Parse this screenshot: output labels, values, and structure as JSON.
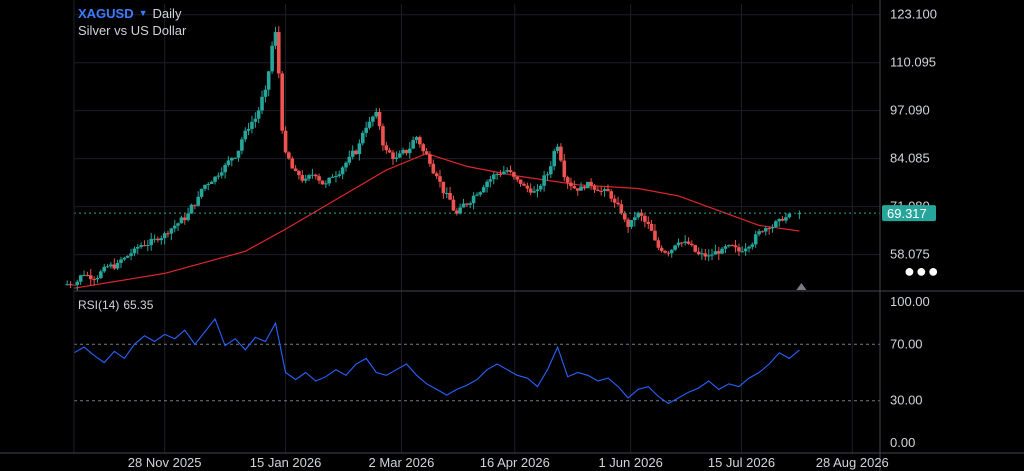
{
  "header": {
    "symbol": "XAGUSD",
    "interval": "Daily",
    "description": "Silver vs US Dollar"
  },
  "rsi": {
    "label": "RSI(14)",
    "value": "65.35"
  },
  "colors": {
    "up": "#26a69a",
    "down": "#ef5350",
    "ma": "#e0262b",
    "rsi": "#2962ff",
    "last_price": "#26a69a",
    "price_line": "#26a69a"
  },
  "chart_data": [
    {
      "type": "candlestick",
      "title": "XAGUSD Daily",
      "x_axis": {
        "type": "date",
        "range": [
          "2025-10-23",
          "2026-09-08"
        ],
        "tick_labels": [
          {
            "date": "2025-11-28",
            "label": "28 Nov 2025"
          },
          {
            "date": "2026-01-15",
            "label": "15 Jan 2026"
          },
          {
            "date": "2026-03-02",
            "label": "2 Mar 2026"
          },
          {
            "date": "2026-04-16",
            "label": "16 Apr 2026"
          },
          {
            "date": "2026-06-01",
            "label": "1 Jun 2026"
          },
          {
            "date": "2026-07-15",
            "label": "15 Jul 2026"
          },
          {
            "date": "2026-08-28",
            "label": "28 Aug 2026"
          }
        ]
      },
      "y_axis": {
        "range": [
          48.5,
          126
        ],
        "tick_labels": [
          "123.100",
          "110.095",
          "97.090",
          "84.085",
          "71.080",
          "58.075"
        ],
        "tick_values": [
          123.1,
          110.095,
          97.09,
          84.085,
          71.08,
          58.075
        ]
      },
      "last_price": {
        "value": 69.317,
        "label": "69.317"
      },
      "grid": true,
      "candles": [
        {
          "x": "2025-10-23",
          "v": 50.5
        },
        {
          "x": "2025-10-27",
          "v": 53.0
        },
        {
          "x": "2025-10-31",
          "v": 52.0
        },
        {
          "x": "2025-11-04",
          "v": 54.0
        },
        {
          "x": "2025-11-08",
          "v": 55.0
        },
        {
          "x": "2025-11-12",
          "v": 57.0
        },
        {
          "x": "2025-11-16",
          "v": 59.0
        },
        {
          "x": "2025-11-20",
          "v": 61.0
        },
        {
          "x": "2025-11-24",
          "v": 62.0
        },
        {
          "x": "2025-11-28",
          "v": 63.5
        },
        {
          "x": "2025-12-02",
          "v": 66.0
        },
        {
          "x": "2025-12-06",
          "v": 68.0
        },
        {
          "x": "2025-12-10",
          "v": 72.0
        },
        {
          "x": "2025-12-14",
          "v": 77.0
        },
        {
          "x": "2025-12-18",
          "v": 79.0
        },
        {
          "x": "2025-12-22",
          "v": 82.0
        },
        {
          "x": "2025-12-26",
          "v": 85.0
        },
        {
          "x": "2025-12-30",
          "v": 91.0
        },
        {
          "x": "2026-01-03",
          "v": 95.0
        },
        {
          "x": "2026-01-07",
          "v": 102.0
        },
        {
          "x": "2026-01-11",
          "v": 118.0
        },
        {
          "x": "2026-01-15",
          "v": 85.0
        },
        {
          "x": "2026-01-19",
          "v": 80.0
        },
        {
          "x": "2026-01-23",
          "v": 78.0
        },
        {
          "x": "2026-01-27",
          "v": 80.0
        },
        {
          "x": "2026-01-31",
          "v": 77.0
        },
        {
          "x": "2026-02-04",
          "v": 80.0
        },
        {
          "x": "2026-02-08",
          "v": 83.0
        },
        {
          "x": "2026-02-12",
          "v": 86.0
        },
        {
          "x": "2026-02-16",
          "v": 93.0
        },
        {
          "x": "2026-02-20",
          "v": 96.0
        },
        {
          "x": "2026-02-24",
          "v": 86.0
        },
        {
          "x": "2026-02-28",
          "v": 84.0
        },
        {
          "x": "2026-03-04",
          "v": 86.0
        },
        {
          "x": "2026-03-08",
          "v": 90.0
        },
        {
          "x": "2026-03-12",
          "v": 85.0
        },
        {
          "x": "2026-03-16",
          "v": 80.0
        },
        {
          "x": "2026-03-20",
          "v": 74.0
        },
        {
          "x": "2026-03-24",
          "v": 69.0
        },
        {
          "x": "2026-03-28",
          "v": 72.0
        },
        {
          "x": "2026-04-01",
          "v": 75.0
        },
        {
          "x": "2026-04-05",
          "v": 78.0
        },
        {
          "x": "2026-04-09",
          "v": 80.0
        },
        {
          "x": "2026-04-13",
          "v": 81.0
        },
        {
          "x": "2026-04-17",
          "v": 78.0
        },
        {
          "x": "2026-04-21",
          "v": 76.0
        },
        {
          "x": "2026-04-25",
          "v": 75.0
        },
        {
          "x": "2026-04-29",
          "v": 80.0
        },
        {
          "x": "2026-05-03",
          "v": 88.0
        },
        {
          "x": "2026-05-07",
          "v": 78.0
        },
        {
          "x": "2026-05-11",
          "v": 76.0
        },
        {
          "x": "2026-05-15",
          "v": 77.0
        },
        {
          "x": "2026-05-19",
          "v": 76.0
        },
        {
          "x": "2026-05-23",
          "v": 75.0
        },
        {
          "x": "2026-05-27",
          "v": 71.0
        },
        {
          "x": "2026-05-31",
          "v": 66.0
        },
        {
          "x": "2026-06-04",
          "v": 69.0
        },
        {
          "x": "2026-06-08",
          "v": 66.0
        },
        {
          "x": "2026-06-12",
          "v": 60.0
        },
        {
          "x": "2026-06-16",
          "v": 59.0
        },
        {
          "x": "2026-06-20",
          "v": 62.0
        },
        {
          "x": "2026-06-24",
          "v": 61.0
        },
        {
          "x": "2026-06-28",
          "v": 58.0
        },
        {
          "x": "2026-07-02",
          "v": 57.5
        },
        {
          "x": "2026-07-06",
          "v": 59.0
        },
        {
          "x": "2026-07-10",
          "v": 60.0
        },
        {
          "x": "2026-07-14",
          "v": 59.0
        },
        {
          "x": "2026-07-18",
          "v": 61.0
        },
        {
          "x": "2026-07-22",
          "v": 64.0
        },
        {
          "x": "2026-07-26",
          "v": 66.0
        },
        {
          "x": "2026-07-30",
          "v": 67.0
        },
        {
          "x": "2026-08-03",
          "v": 68.5
        },
        {
          "x": "2026-08-07",
          "v": 69.3
        }
      ],
      "moving_average": [
        {
          "x": "2025-10-23",
          "v": 49.0
        },
        {
          "x": "2025-11-28",
          "v": 53.0
        },
        {
          "x": "2025-12-30",
          "v": 59.0
        },
        {
          "x": "2026-01-15",
          "v": 65.0
        },
        {
          "x": "2026-02-04",
          "v": 73.0
        },
        {
          "x": "2026-02-24",
          "v": 81.0
        },
        {
          "x": "2026-03-12",
          "v": 85.5
        },
        {
          "x": "2026-03-28",
          "v": 82.0
        },
        {
          "x": "2026-04-16",
          "v": 79.5
        },
        {
          "x": "2026-05-11",
          "v": 77.0
        },
        {
          "x": "2026-06-04",
          "v": 76.0
        },
        {
          "x": "2026-06-20",
          "v": 74.0
        },
        {
          "x": "2026-07-06",
          "v": 70.0
        },
        {
          "x": "2026-07-22",
          "v": 66.0
        },
        {
          "x": "2026-08-07",
          "v": 64.5
        }
      ]
    },
    {
      "type": "line",
      "title": "RSI(14) 65.35",
      "x_axis": {
        "type": "date",
        "range": [
          "2025-10-23",
          "2026-09-08"
        ]
      },
      "y_axis": {
        "range": [
          0,
          100
        ],
        "tick_labels": [
          "100.00",
          "70.00",
          "30.00",
          "0.00"
        ],
        "tick_values": [
          100,
          70,
          30,
          0
        ]
      },
      "bands": [
        70,
        30
      ],
      "series": [
        {
          "name": "RSI(14)",
          "points": [
            {
              "x": "2025-10-23",
              "v": 64
            },
            {
              "x": "2025-10-27",
              "v": 68
            },
            {
              "x": "2025-10-31",
              "v": 62
            },
            {
              "x": "2025-11-04",
              "v": 57
            },
            {
              "x": "2025-11-08",
              "v": 65
            },
            {
              "x": "2025-11-12",
              "v": 60
            },
            {
              "x": "2025-11-16",
              "v": 70
            },
            {
              "x": "2025-11-20",
              "v": 76
            },
            {
              "x": "2025-11-24",
              "v": 72
            },
            {
              "x": "2025-11-28",
              "v": 77
            },
            {
              "x": "2025-12-02",
              "v": 74
            },
            {
              "x": "2025-12-06",
              "v": 80
            },
            {
              "x": "2025-12-10",
              "v": 70
            },
            {
              "x": "2025-12-14",
              "v": 79
            },
            {
              "x": "2025-12-18",
              "v": 88
            },
            {
              "x": "2025-12-22",
              "v": 69
            },
            {
              "x": "2025-12-26",
              "v": 74
            },
            {
              "x": "2025-12-30",
              "v": 66
            },
            {
              "x": "2026-01-03",
              "v": 75
            },
            {
              "x": "2026-01-07",
              "v": 72
            },
            {
              "x": "2026-01-11",
              "v": 85
            },
            {
              "x": "2026-01-15",
              "v": 50
            },
            {
              "x": "2026-01-19",
              "v": 45
            },
            {
              "x": "2026-01-23",
              "v": 50
            },
            {
              "x": "2026-01-27",
              "v": 44
            },
            {
              "x": "2026-01-31",
              "v": 47
            },
            {
              "x": "2026-02-04",
              "v": 52
            },
            {
              "x": "2026-02-08",
              "v": 48
            },
            {
              "x": "2026-02-12",
              "v": 56
            },
            {
              "x": "2026-02-16",
              "v": 60
            },
            {
              "x": "2026-02-20",
              "v": 50
            },
            {
              "x": "2026-02-24",
              "v": 48
            },
            {
              "x": "2026-02-28",
              "v": 52
            },
            {
              "x": "2026-03-04",
              "v": 56
            },
            {
              "x": "2026-03-08",
              "v": 48
            },
            {
              "x": "2026-03-12",
              "v": 42
            },
            {
              "x": "2026-03-16",
              "v": 38
            },
            {
              "x": "2026-03-20",
              "v": 34
            },
            {
              "x": "2026-03-24",
              "v": 38
            },
            {
              "x": "2026-03-28",
              "v": 41
            },
            {
              "x": "2026-04-01",
              "v": 45
            },
            {
              "x": "2026-04-05",
              "v": 52
            },
            {
              "x": "2026-04-09",
              "v": 56
            },
            {
              "x": "2026-04-13",
              "v": 52
            },
            {
              "x": "2026-04-17",
              "v": 48
            },
            {
              "x": "2026-04-21",
              "v": 46
            },
            {
              "x": "2026-04-25",
              "v": 40
            },
            {
              "x": "2026-04-29",
              "v": 52
            },
            {
              "x": "2026-05-03",
              "v": 68
            },
            {
              "x": "2026-05-07",
              "v": 47
            },
            {
              "x": "2026-05-11",
              "v": 50
            },
            {
              "x": "2026-05-15",
              "v": 48
            },
            {
              "x": "2026-05-19",
              "v": 44
            },
            {
              "x": "2026-05-23",
              "v": 46
            },
            {
              "x": "2026-05-27",
              "v": 40
            },
            {
              "x": "2026-05-31",
              "v": 32
            },
            {
              "x": "2026-06-04",
              "v": 38
            },
            {
              "x": "2026-06-08",
              "v": 40
            },
            {
              "x": "2026-06-12",
              "v": 33
            },
            {
              "x": "2026-06-16",
              "v": 28
            },
            {
              "x": "2026-06-20",
              "v": 32
            },
            {
              "x": "2026-06-24",
              "v": 36
            },
            {
              "x": "2026-06-28",
              "v": 39
            },
            {
              "x": "2026-07-02",
              "v": 44
            },
            {
              "x": "2026-07-06",
              "v": 38
            },
            {
              "x": "2026-07-10",
              "v": 42
            },
            {
              "x": "2026-07-14",
              "v": 40
            },
            {
              "x": "2026-07-18",
              "v": 46
            },
            {
              "x": "2026-07-22",
              "v": 50
            },
            {
              "x": "2026-07-26",
              "v": 56
            },
            {
              "x": "2026-07-30",
              "v": 64
            },
            {
              "x": "2026-08-03",
              "v": 60
            },
            {
              "x": "2026-08-07",
              "v": 66
            }
          ]
        }
      ]
    }
  ]
}
